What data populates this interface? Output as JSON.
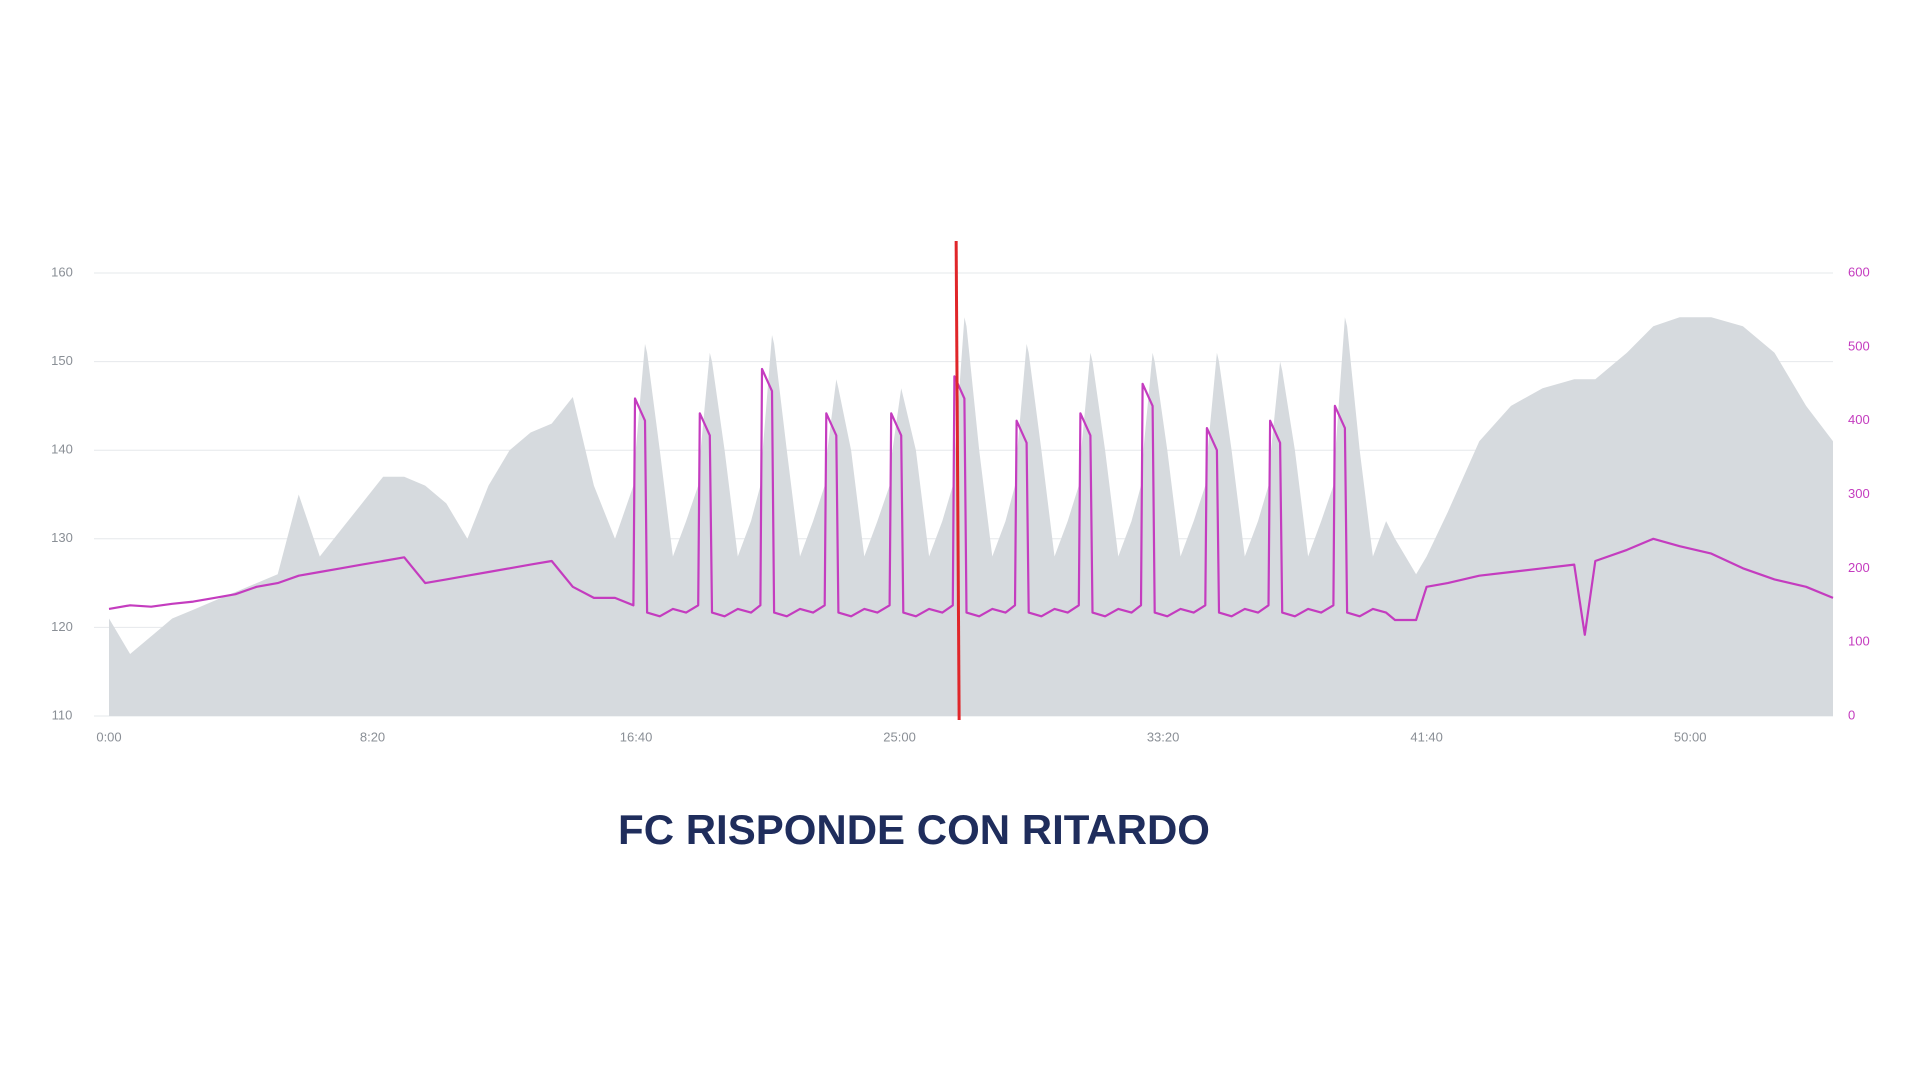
{
  "chart_data": {
    "type": "area-line",
    "title": "FC RISPONDE CON RITARDO",
    "x": [
      0,
      40,
      80,
      120,
      160,
      200,
      240,
      280,
      320,
      360,
      400,
      440,
      480,
      520,
      560,
      600,
      640,
      680,
      720,
      760,
      800,
      840,
      880,
      920,
      960,
      995,
      998,
      1017,
      1021,
      1045,
      1070,
      1095,
      1118,
      1121,
      1140,
      1144,
      1168,
      1193,
      1218,
      1236,
      1239,
      1258,
      1262,
      1286,
      1311,
      1336,
      1358,
      1361,
      1380,
      1384,
      1408,
      1433,
      1458,
      1481,
      1484,
      1503,
      1507,
      1531,
      1556,
      1581,
      1601,
      1604,
      1623,
      1627,
      1651,
      1676,
      1701,
      1719,
      1722,
      1741,
      1745,
      1769,
      1794,
      1819,
      1840,
      1843,
      1862,
      1866,
      1890,
      1915,
      1940,
      1958,
      1961,
      1980,
      1984,
      2008,
      2033,
      2058,
      2080,
      2083,
      2102,
      2106,
      2130,
      2155,
      2180,
      2200,
      2203,
      2222,
      2226,
      2250,
      2275,
      2300,
      2323,
      2326,
      2345,
      2349,
      2373,
      2398,
      2423,
      2440,
      2480,
      2500,
      2540,
      2600,
      2660,
      2720,
      2780,
      2800,
      2820,
      2880,
      2930,
      2980,
      3040,
      3100,
      3160,
      3220,
      3271
    ],
    "series": [
      {
        "color": "#d6dade",
        "axis": "y",
        "values": [
          121,
          117,
          119,
          121,
          122,
          123,
          124,
          125,
          126,
          135,
          128,
          131,
          134,
          137,
          137,
          136,
          134,
          130,
          136,
          140,
          142,
          143,
          146,
          136,
          130,
          136,
          139,
          152,
          151,
          140,
          128,
          132,
          136,
          139,
          151,
          150,
          140,
          128,
          132,
          136,
          139,
          153,
          152,
          140,
          128,
          132,
          136,
          139,
          148,
          147,
          140,
          128,
          132,
          136,
          139,
          147,
          146,
          140,
          128,
          132,
          136,
          139,
          155,
          154,
          140,
          128,
          132,
          136,
          139,
          152,
          151,
          140,
          128,
          132,
          136,
          139,
          151,
          150,
          140,
          128,
          132,
          136,
          139,
          151,
          150,
          140,
          128,
          132,
          136,
          139,
          151,
          150,
          140,
          128,
          132,
          136,
          139,
          150,
          149,
          140,
          128,
          132,
          136,
          139,
          155,
          154,
          140,
          128,
          132,
          130,
          126,
          128,
          133,
          141,
          145,
          147,
          148,
          148,
          148,
          151,
          154,
          155,
          155,
          154,
          151,
          145,
          141
        ]
      },
      {
        "color": "#c43cbf",
        "axis": "y2",
        "values": [
          145,
          150,
          148,
          152,
          155,
          160,
          165,
          175,
          180,
          190,
          195,
          200,
          205,
          210,
          215,
          180,
          185,
          190,
          195,
          200,
          205,
          210,
          175,
          160,
          160,
          150,
          430,
          400,
          140,
          135,
          145,
          140,
          150,
          410,
          380,
          140,
          135,
          145,
          140,
          150,
          470,
          440,
          140,
          135,
          145,
          140,
          150,
          410,
          380,
          140,
          135,
          145,
          140,
          150,
          410,
          380,
          140,
          135,
          145,
          140,
          150,
          460,
          430,
          140,
          135,
          145,
          140,
          150,
          400,
          370,
          140,
          135,
          145,
          140,
          150,
          410,
          380,
          140,
          135,
          145,
          140,
          150,
          450,
          420,
          140,
          135,
          145,
          140,
          150,
          390,
          360,
          140,
          135,
          145,
          140,
          150,
          400,
          370,
          140,
          135,
          145,
          140,
          150,
          420,
          390,
          140,
          135,
          145,
          140,
          130,
          130,
          175,
          180,
          190,
          195,
          200,
          205,
          110,
          210,
          225,
          240,
          230,
          220,
          200,
          185,
          175,
          160
        ]
      }
    ],
    "xlim": [
      0,
      3271
    ],
    "xticks": [
      {
        "value": 0,
        "label": "0:00"
      },
      {
        "value": 500,
        "label": "8:20"
      },
      {
        "value": 1000,
        "label": "16:40"
      },
      {
        "value": 1500,
        "label": "25:00"
      },
      {
        "value": 2000,
        "label": "33:20"
      },
      {
        "value": 2500,
        "label": "41:40"
      },
      {
        "value": 3000,
        "label": "50:00"
      }
    ],
    "ylim": [
      110,
      160
    ],
    "yticks": [
      110,
      120,
      130,
      140,
      150,
      160
    ],
    "y2lim": [
      0,
      600
    ],
    "y2ticks": [
      0,
      100,
      200,
      300,
      400,
      500,
      600
    ],
    "grid": true,
    "vline": {
      "x": 1613,
      "color": "#e0262a"
    }
  }
}
